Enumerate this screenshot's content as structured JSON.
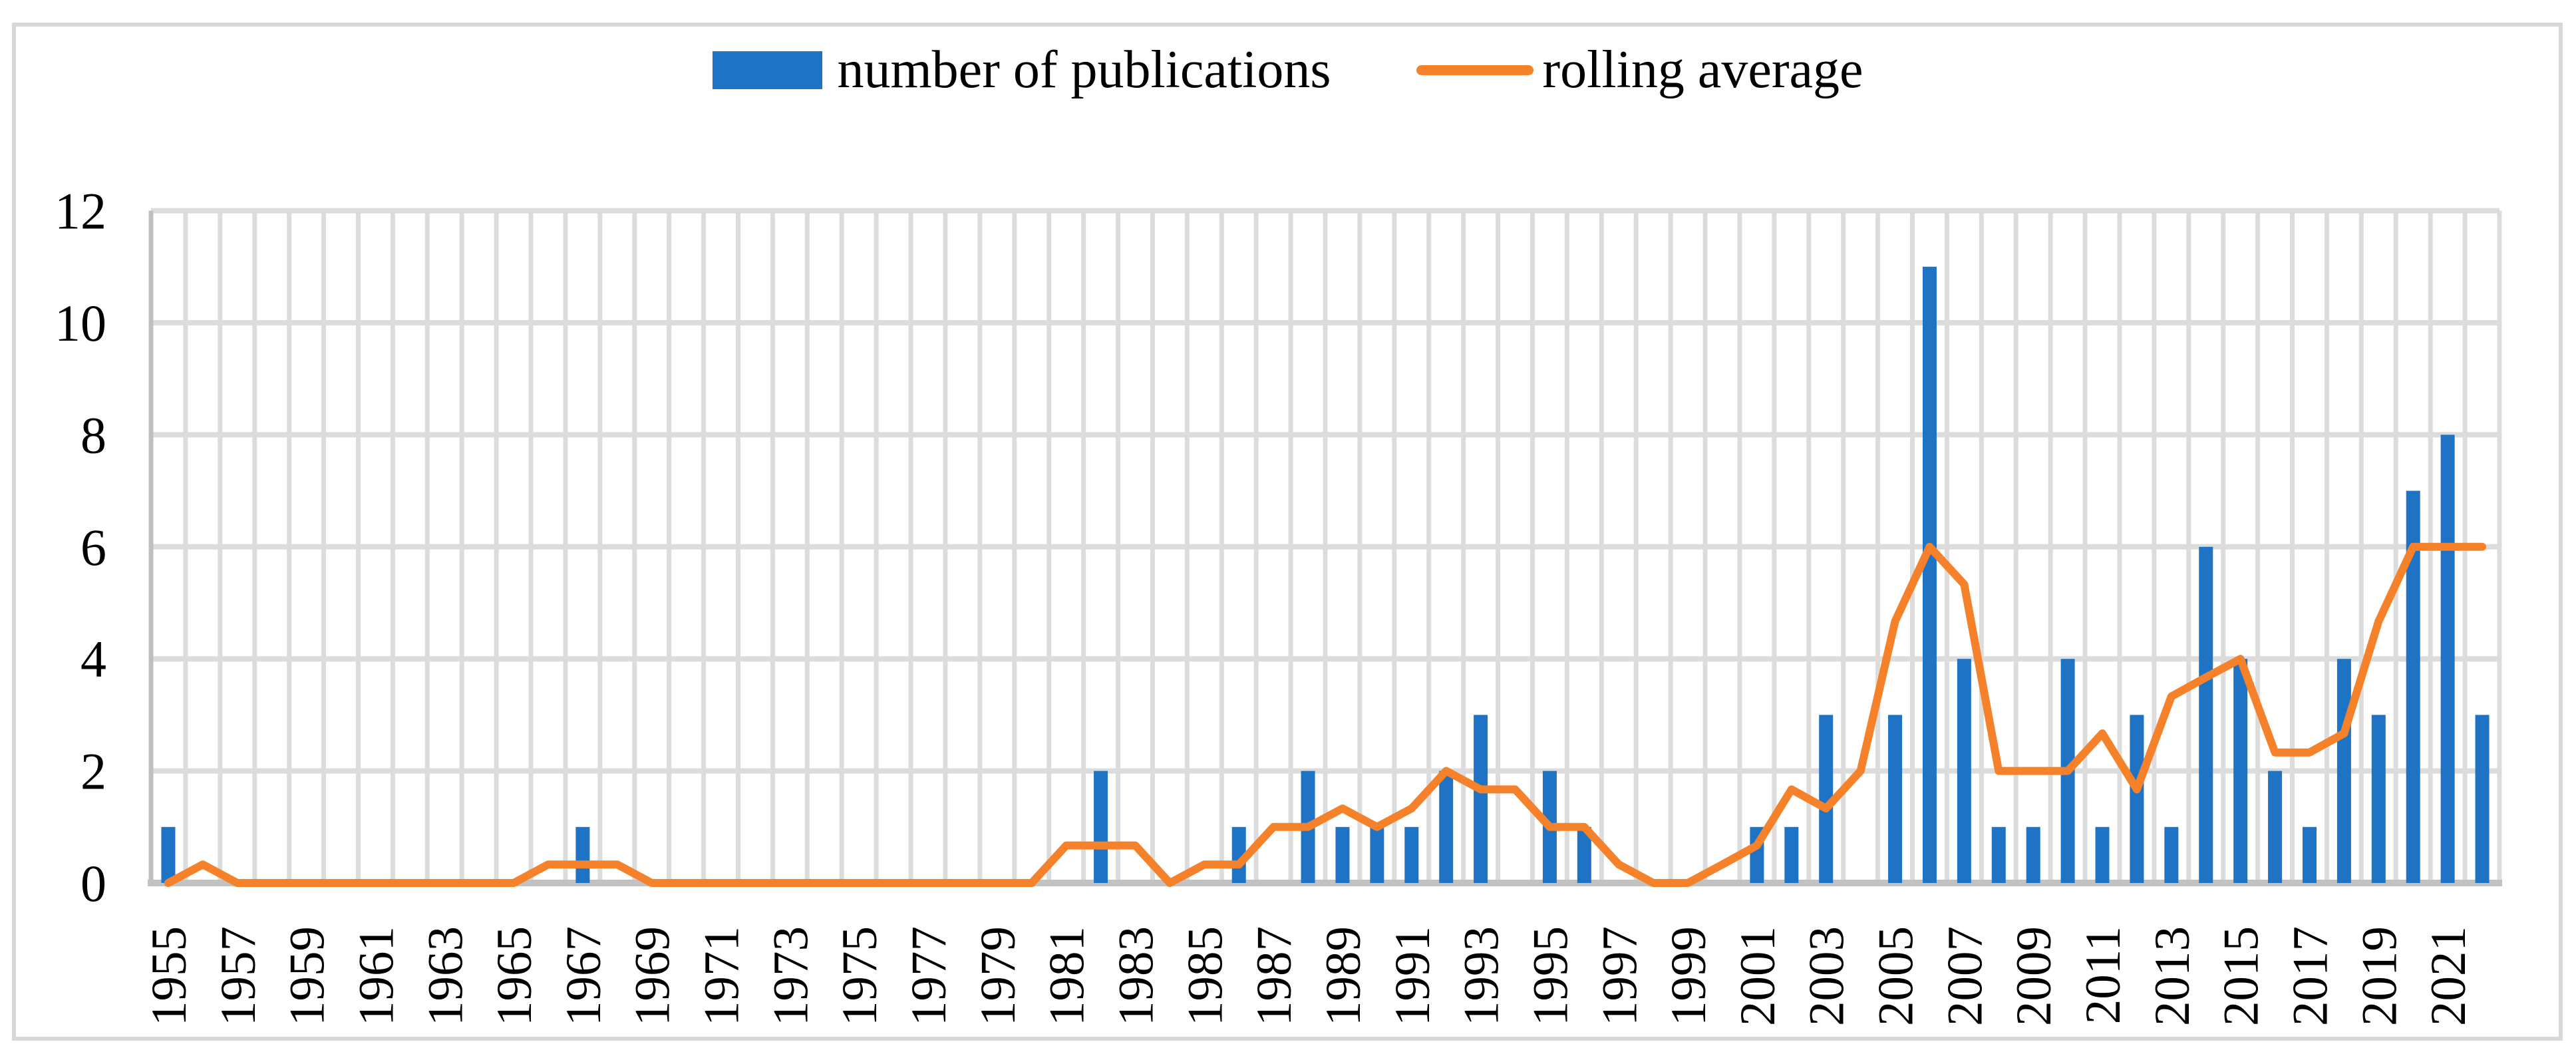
{
  "legend": {
    "bars_label": "number of publications",
    "line_label": "rolling average"
  },
  "colors": {
    "bar": "#1E73C5",
    "line": "#F6812B",
    "gridline": "#DCDCDC",
    "x_axis_line": "#C2C2C2",
    "y_axis_line": "#BFBFBF",
    "figure_border": "#D8D8D8",
    "text": "#000000"
  },
  "chart_data": {
    "type": "bar",
    "title": "",
    "xlabel": "",
    "ylabel": "",
    "ylim": [
      0,
      12
    ],
    "yticks": [
      0,
      2,
      4,
      6,
      8,
      10,
      12
    ],
    "grid": "horizontal every 2 units, vertical at every year boundary",
    "legend_position": "top-center",
    "x_tick_labels": [
      "1955",
      "1957",
      "1959",
      "1961",
      "1963",
      "1965",
      "1967",
      "1969",
      "1971",
      "1973",
      "1975",
      "1977",
      "1979",
      "1981",
      "1983",
      "1985",
      "1987",
      "1989",
      "1991",
      "1993",
      "1995",
      "1997",
      "1999",
      "2001",
      "2003",
      "2005",
      "2007",
      "2009",
      "2011",
      "2013",
      "2015",
      "2017",
      "2019",
      "2021"
    ],
    "x_tick_rotation_degrees": -90,
    "years": [
      1955,
      1956,
      1957,
      1958,
      1959,
      1960,
      1961,
      1962,
      1963,
      1964,
      1965,
      1966,
      1967,
      1968,
      1969,
      1970,
      1971,
      1972,
      1973,
      1974,
      1975,
      1976,
      1977,
      1978,
      1979,
      1980,
      1981,
      1982,
      1983,
      1984,
      1985,
      1986,
      1987,
      1988,
      1989,
      1990,
      1991,
      1992,
      1993,
      1994,
      1995,
      1996,
      1997,
      1998,
      1999,
      2000,
      2001,
      2002,
      2003,
      2004,
      2005,
      2006,
      2007,
      2008,
      2009,
      2010,
      2011,
      2012,
      2013,
      2014,
      2015,
      2016,
      2017,
      2018,
      2019,
      2020,
      2021,
      2022
    ],
    "series": [
      {
        "name": "number of publications",
        "type": "bar",
        "values": [
          1,
          0,
          0,
          0,
          0,
          0,
          0,
          0,
          0,
          0,
          0,
          0,
          1,
          0,
          0,
          0,
          0,
          0,
          0,
          0,
          0,
          0,
          0,
          0,
          0,
          0,
          0,
          2,
          0,
          0,
          0,
          1,
          0,
          2,
          1,
          1,
          1,
          2,
          3,
          0,
          2,
          1,
          0,
          0,
          0,
          0,
          1,
          1,
          3,
          0,
          3,
          11,
          4,
          1,
          1,
          4,
          1,
          3,
          1,
          6,
          4,
          2,
          1,
          4,
          3,
          7,
          8,
          3
        ]
      },
      {
        "name": "rolling average",
        "type": "line",
        "values": [
          0,
          0.33,
          0,
          0,
          0,
          0,
          0,
          0,
          0,
          0,
          0,
          0.33,
          0.33,
          0.33,
          0,
          0,
          0,
          0,
          0,
          0,
          0,
          0,
          0,
          0,
          0,
          0,
          0.67,
          0.67,
          0.67,
          0,
          0.33,
          0.33,
          1,
          1,
          1.33,
          1,
          1.33,
          2,
          1.67,
          1.67,
          1,
          1,
          0.33,
          0,
          0,
          0.33,
          0.67,
          1.67,
          1.33,
          2,
          4.67,
          6,
          5.33,
          2,
          2,
          2,
          2.67,
          1.67,
          3.33,
          3.67,
          4,
          2.33,
          2.33,
          2.67,
          4.67,
          6,
          6,
          6
        ]
      }
    ]
  }
}
